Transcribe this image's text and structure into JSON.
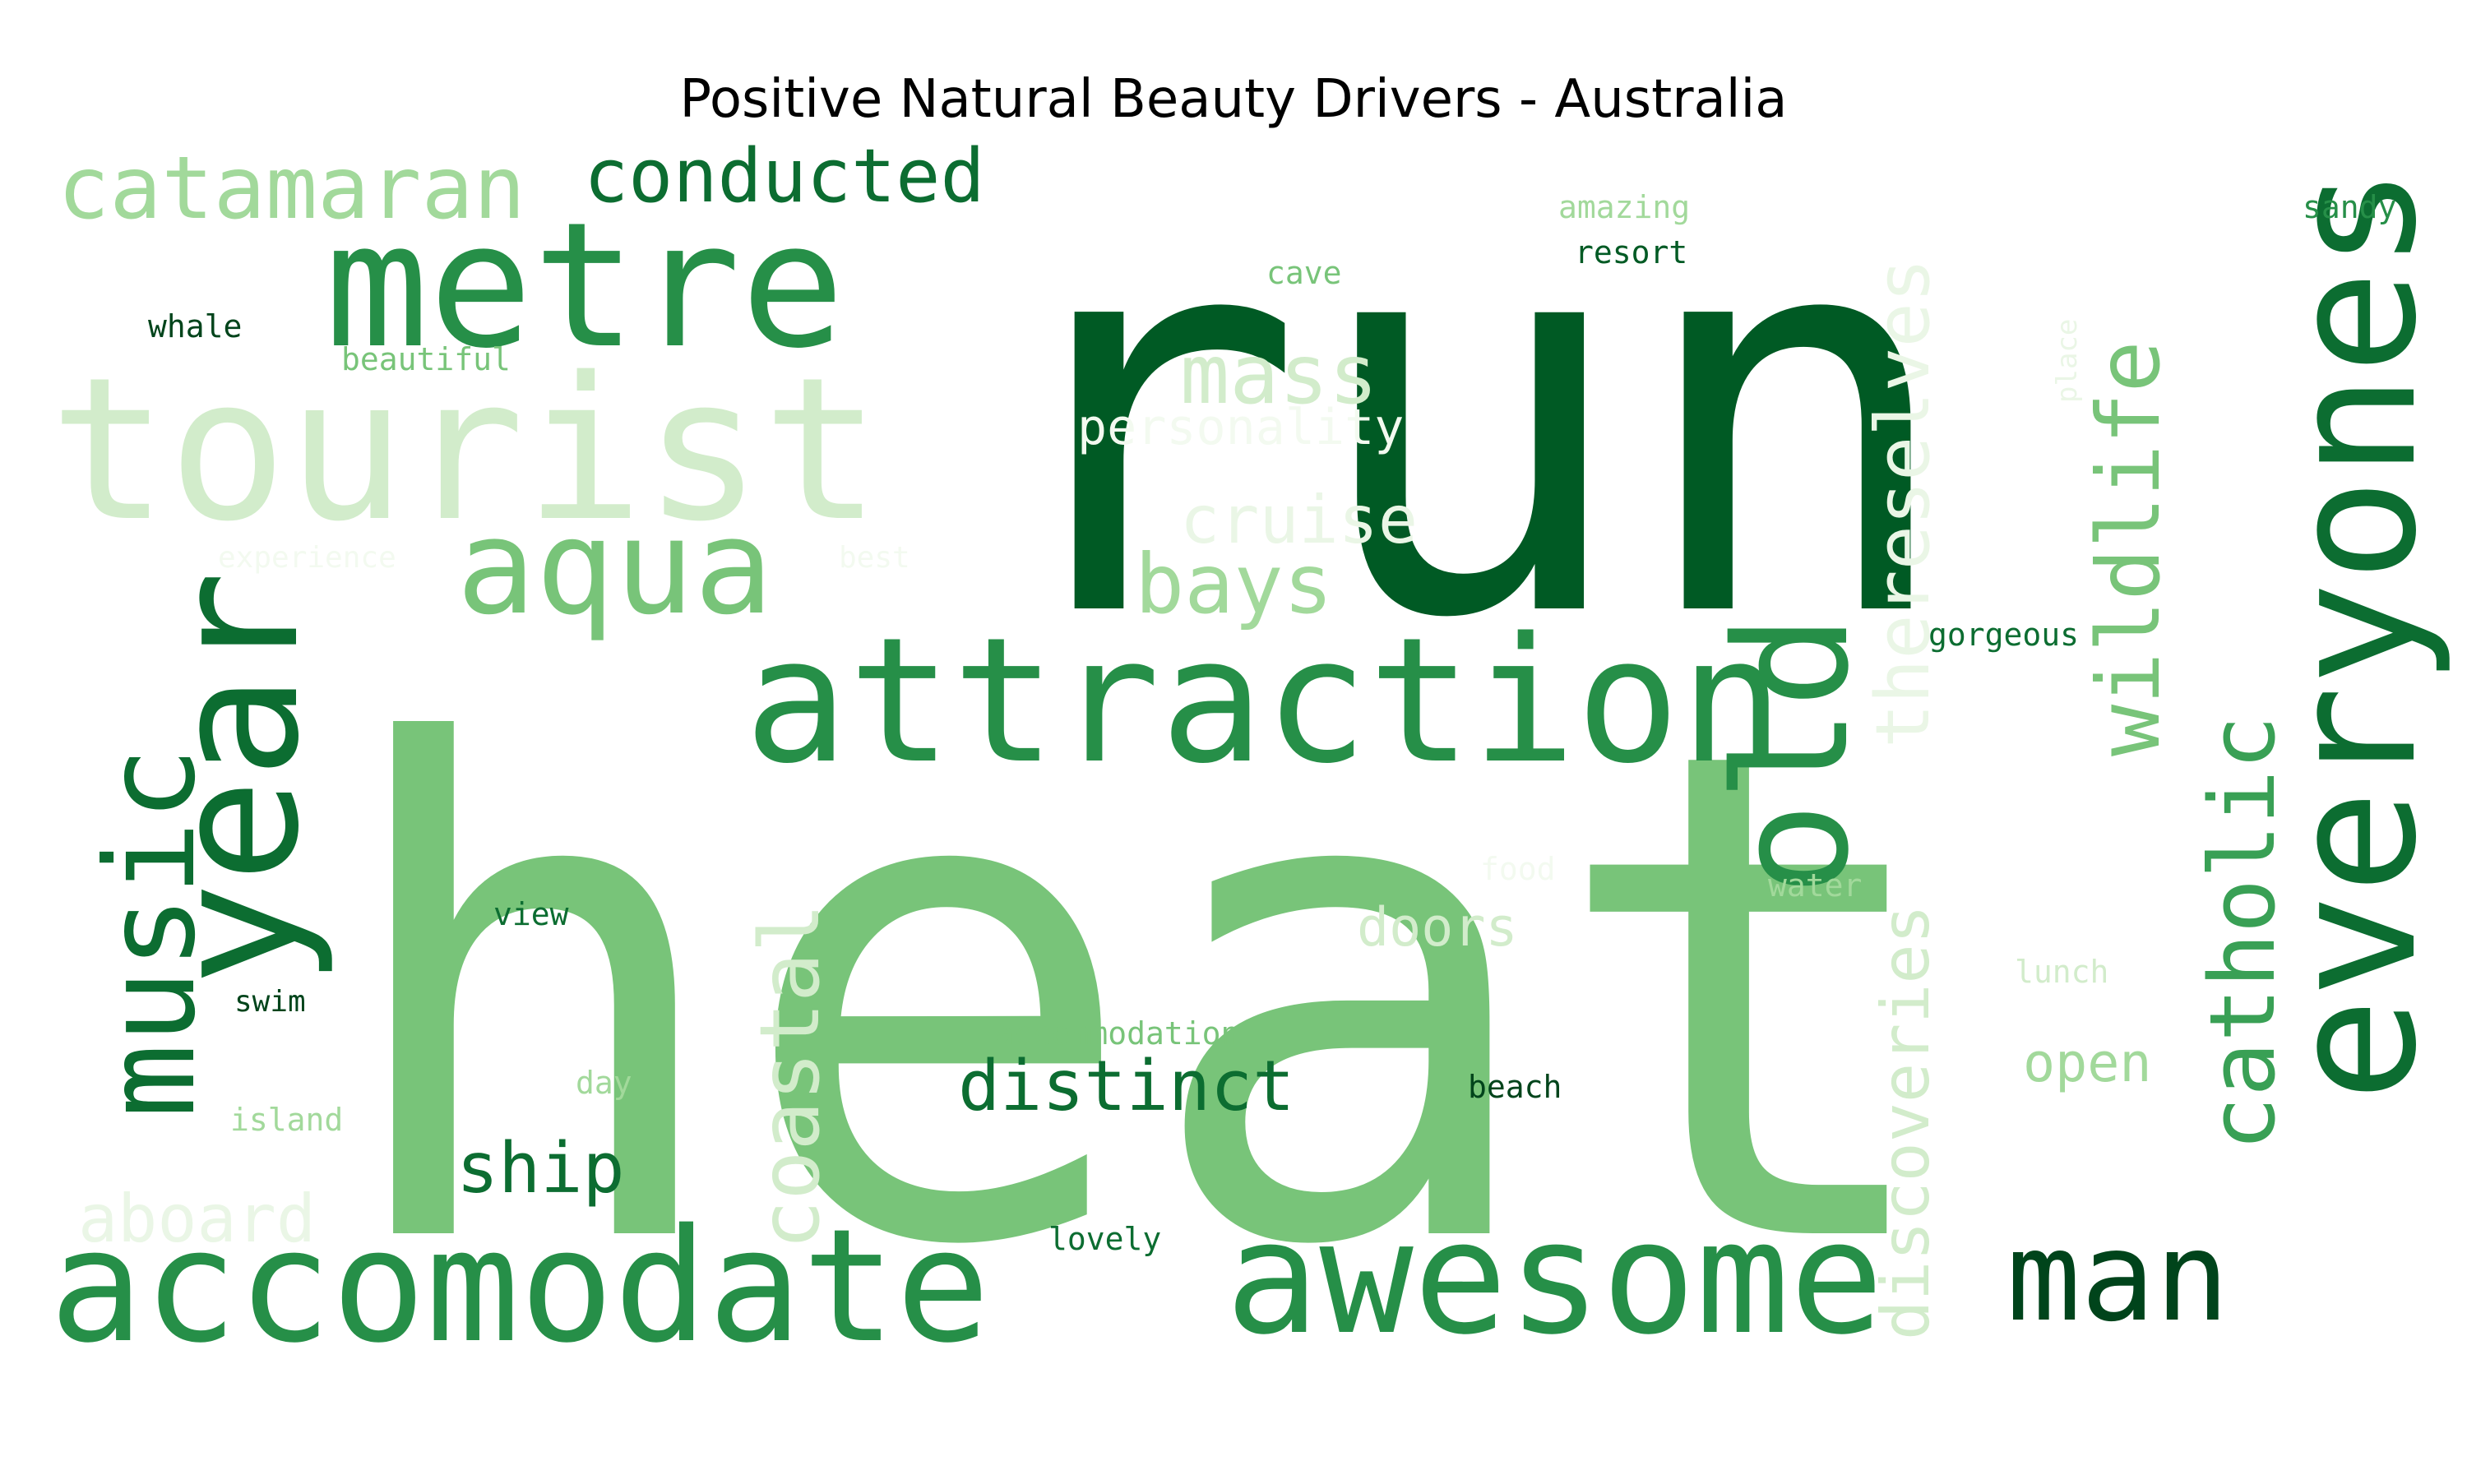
{
  "chart_data": {
    "type": "wordcloud",
    "title": "Positive Natural Beauty Drivers - Australia",
    "colormap": "Greens",
    "words": [
      {
        "text": "run",
        "weight": 100,
        "color": "#005a24"
      },
      {
        "text": "heat",
        "weight": 96,
        "color": "#78c479"
      },
      {
        "text": "tourist",
        "weight": 40,
        "color": "#d2eccb"
      },
      {
        "text": "attraction",
        "weight": 36,
        "color": "#268f48"
      },
      {
        "text": "metre",
        "weight": 34,
        "color": "#268f48"
      },
      {
        "text": "year",
        "weight": 34,
        "color": "#0c6d31"
      },
      {
        "text": "everyones",
        "weight": 34,
        "color": "#0c6d31"
      },
      {
        "text": "accomodate",
        "weight": 34,
        "color": "#268f48"
      },
      {
        "text": "awesome",
        "weight": 34,
        "color": "#268f48"
      },
      {
        "text": "old",
        "weight": 32,
        "color": "#268f48"
      },
      {
        "text": "aqua",
        "weight": 30,
        "color": "#78c479"
      },
      {
        "text": "music",
        "weight": 28,
        "color": "#0c6d31"
      },
      {
        "text": "man",
        "weight": 28,
        "color": "#00441b"
      },
      {
        "text": "catholic",
        "weight": 22,
        "color": "#39a055"
      },
      {
        "text": "wildlife",
        "weight": 22,
        "color": "#78c479"
      },
      {
        "text": "catamaran",
        "weight": 22,
        "color": "#a2d99b"
      },
      {
        "text": "conducted",
        "weight": 20,
        "color": "#0c6d31"
      },
      {
        "text": "coastal",
        "weight": 20,
        "color": "#d2eccb"
      },
      {
        "text": "thereselves",
        "weight": 18,
        "color": "#eaf6e6"
      },
      {
        "text": "discoveries",
        "weight": 18,
        "color": "#d2eccb"
      },
      {
        "text": "mass",
        "weight": 18,
        "color": "#d2eccb"
      },
      {
        "text": "bays",
        "weight": 18,
        "color": "#a2d99b"
      },
      {
        "text": "distinct",
        "weight": 16,
        "color": "#0c6d31"
      },
      {
        "text": "ship",
        "weight": 16,
        "color": "#0c6d31"
      },
      {
        "text": "aboard",
        "weight": 16,
        "color": "#eaf6e6"
      },
      {
        "text": "cruise",
        "weight": 16,
        "color": "#eaf6e6"
      },
      {
        "text": "doors",
        "weight": 12,
        "color": "#d2eccb"
      },
      {
        "text": "open",
        "weight": 12,
        "color": "#a2d99b"
      },
      {
        "text": "personality",
        "weight": 12,
        "color": "#f3faf0"
      },
      {
        "text": "accommodation",
        "weight": 8,
        "color": "#78c479"
      },
      {
        "text": "gorgeous",
        "weight": 8,
        "color": "#0c6d31"
      },
      {
        "text": "beautiful",
        "weight": 8,
        "color": "#78c479"
      },
      {
        "text": "amazing",
        "weight": 8,
        "color": "#a2d99b"
      },
      {
        "text": "resort",
        "weight": 8,
        "color": "#005a24"
      },
      {
        "text": "cave",
        "weight": 8,
        "color": "#78c479"
      },
      {
        "text": "whale",
        "weight": 8,
        "color": "#00441b"
      },
      {
        "text": "sandy",
        "weight": 8,
        "color": "#268f48"
      },
      {
        "text": "place",
        "weight": 6,
        "color": "#eaf6e6"
      },
      {
        "text": "experience",
        "weight": 8,
        "color": "#f3faf0"
      },
      {
        "text": "best",
        "weight": 8,
        "color": "#f3faf0"
      },
      {
        "text": "view",
        "weight": 8,
        "color": "#0c6d31"
      },
      {
        "text": "swim",
        "weight": 8,
        "color": "#00441b"
      },
      {
        "text": "day",
        "weight": 8,
        "color": "#a2d99b"
      },
      {
        "text": "island",
        "weight": 8,
        "color": "#a2d99b"
      },
      {
        "text": "lovely",
        "weight": 8,
        "color": "#0c6d31"
      },
      {
        "text": "beach",
        "weight": 8,
        "color": "#00441b"
      },
      {
        "text": "water",
        "weight": 8,
        "color": "#a2d99b"
      },
      {
        "text": "food",
        "weight": 8,
        "color": "#f3faf0"
      },
      {
        "text": "lunch",
        "weight": 8,
        "color": "#d2eccb"
      }
    ]
  }
}
